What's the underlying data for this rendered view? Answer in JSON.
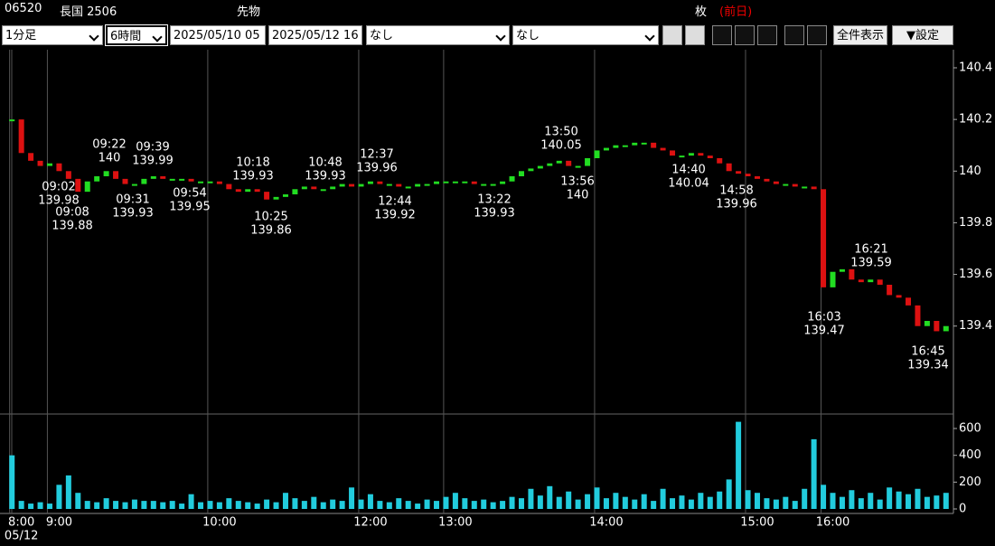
{
  "header": {
    "code": "06520",
    "name": "長国 2506",
    "kind": "先物",
    "unit": "枚",
    "prev": "(前日)"
  },
  "toolbar": {
    "interval": "1分足",
    "span": "6時間",
    "from": "2025/05/10 05",
    "to": "2025/05/12 16",
    "indicator1": "なし",
    "indicator2": "なし",
    "show_all": "全件表示",
    "settings": "▼設定"
  },
  "chart_data": {
    "type": "line",
    "date_label": "05/12",
    "categories": [
      null,
      "8:00",
      null,
      null,
      null,
      "9:00",
      null,
      null,
      null,
      null,
      null,
      null,
      null,
      null,
      null,
      null,
      null,
      null,
      null,
      null,
      null,
      null,
      "10:00",
      null,
      null,
      null,
      null,
      null,
      null,
      null,
      null,
      null,
      null,
      null,
      null,
      null,
      null,
      null,
      "12:00",
      null,
      null,
      null,
      null,
      null,
      null,
      null,
      null,
      "13:00",
      null,
      null,
      null,
      null,
      null,
      null,
      null,
      null,
      null,
      null,
      null,
      null,
      null,
      null,
      null,
      "14:00",
      null,
      null,
      null,
      null,
      null,
      null,
      null,
      null,
      null,
      null,
      null,
      null,
      null,
      null,
      null,
      "15:00",
      null,
      null,
      null,
      null,
      null,
      null,
      null,
      "16:00",
      null,
      null,
      null,
      null,
      null,
      null,
      null,
      null,
      null,
      null,
      null,
      null
    ],
    "price": {
      "up_color": "#22dd22",
      "down_color": "#dd1111",
      "ylim": [
        139.07,
        140.47
      ],
      "yticks": [
        139.4,
        139.6,
        139.8,
        140,
        140.2,
        140.4
      ],
      "values": [
        140.2,
        140.07,
        140.04,
        140.02,
        140.03,
        140.0,
        139.97,
        139.92,
        139.96,
        139.98,
        140.0,
        139.97,
        139.95,
        139.95,
        139.97,
        139.98,
        139.97,
        139.97,
        139.97,
        139.96,
        139.96,
        139.96,
        139.95,
        139.93,
        139.92,
        139.93,
        139.92,
        139.89,
        139.9,
        139.91,
        139.93,
        139.94,
        139.93,
        139.93,
        139.94,
        139.95,
        139.94,
        139.95,
        139.96,
        139.95,
        139.95,
        139.94,
        139.94,
        139.95,
        139.95,
        139.96,
        139.96,
        139.96,
        139.96,
        139.95,
        139.95,
        139.95,
        139.96,
        139.98,
        140.0,
        140.01,
        140.02,
        140.03,
        140.04,
        140.02,
        140.02,
        140.05,
        140.08,
        140.09,
        140.1,
        140.1,
        140.11,
        140.11,
        140.09,
        140.08,
        140.06,
        140.06,
        140.07,
        140.06,
        140.05,
        140.03,
        140.0,
        139.99,
        139.98,
        139.97,
        139.96,
        139.95,
        139.95,
        139.94,
        139.94,
        139.93,
        139.55,
        139.61,
        139.62,
        139.58,
        139.57,
        139.58,
        139.56,
        139.52,
        139.51,
        139.48,
        139.4,
        139.42,
        139.38,
        139.4
      ]
    },
    "volume": {
      "color": "#22ccdd",
      "ylim": [
        0,
        708
      ],
      "yticks": [
        0,
        200,
        400,
        600
      ],
      "values": [
        400,
        60,
        40,
        50,
        40,
        180,
        250,
        120,
        60,
        50,
        80,
        60,
        50,
        70,
        60,
        60,
        50,
        60,
        40,
        110,
        50,
        60,
        50,
        80,
        60,
        50,
        40,
        70,
        50,
        120,
        80,
        60,
        90,
        50,
        70,
        60,
        160,
        70,
        110,
        60,
        50,
        80,
        60,
        40,
        70,
        60,
        90,
        120,
        80,
        60,
        70,
        50,
        60,
        90,
        80,
        150,
        100,
        170,
        90,
        130,
        70,
        110,
        160,
        80,
        120,
        90,
        70,
        110,
        60,
        150,
        80,
        100,
        70,
        120,
        90,
        130,
        220,
        650,
        140,
        120,
        80,
        70,
        90,
        60,
        150,
        520,
        180,
        120,
        90,
        140,
        80,
        120,
        70,
        160,
        130,
        110,
        150,
        90,
        100,
        120
      ]
    },
    "annotations": [
      {
        "time": "09:02",
        "price": 139.98
      },
      {
        "time": "09:08",
        "price": 139.88
      },
      {
        "time": "09:22",
        "price": 140
      },
      {
        "time": "09:31",
        "price": 139.93
      },
      {
        "time": "09:39",
        "price": 139.99
      },
      {
        "time": "09:54",
        "price": 139.95
      },
      {
        "time": "10:18",
        "price": 139.93
      },
      {
        "time": "10:25",
        "price": 139.86
      },
      {
        "time": "10:48",
        "price": 139.93
      },
      {
        "time": "12:37",
        "price": 139.96
      },
      {
        "time": "12:44",
        "price": 139.92
      },
      {
        "time": "13:22",
        "price": 139.93
      },
      {
        "time": "13:50",
        "price": 140.05
      },
      {
        "time": "13:56",
        "price": 140
      },
      {
        "time": "14:40",
        "price": 140.04
      },
      {
        "time": "14:58",
        "price": 139.96
      },
      {
        "time": "16:03",
        "price": 139.47
      },
      {
        "time": "16:21",
        "price": 139.59
      },
      {
        "time": "16:45",
        "price": 139.34
      }
    ]
  }
}
